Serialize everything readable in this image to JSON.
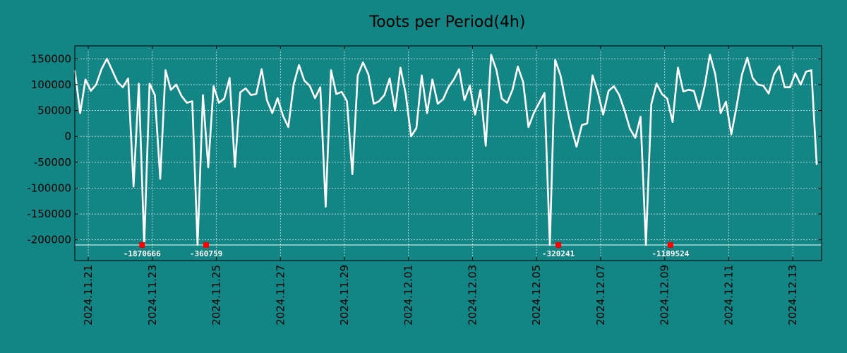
{
  "chart_data": {
    "type": "line",
    "title": "Toots per Period(4h)",
    "xlabel": "",
    "ylabel": "",
    "ylim": [
      -240000,
      175000
    ],
    "xlim": [
      0.58,
      23.9
    ],
    "yticks": [
      150000,
      100000,
      50000,
      0,
      -50000,
      -100000,
      -150000,
      -200000
    ],
    "ytick_labels": [
      "150000",
      "100000",
      "50000",
      "0",
      "-50000",
      "-100000",
      "-150000",
      "-200000"
    ],
    "xticks": [
      {
        "day": 1,
        "label": "2024.11.21"
      },
      {
        "day": 3,
        "label": "2024.11.23"
      },
      {
        "day": 5,
        "label": "2024.11.25"
      },
      {
        "day": 7,
        "label": "2024.11.27"
      },
      {
        "day": 9,
        "label": "2024.11.29"
      },
      {
        "day": 11,
        "label": "2024.12.01"
      },
      {
        "day": 13,
        "label": "2024.12.03"
      },
      {
        "day": 15,
        "label": "2024.12.05"
      },
      {
        "day": 17,
        "label": "2024.12.07"
      },
      {
        "day": 19,
        "label": "2024.12.09"
      },
      {
        "day": 21,
        "label": "2024.12.11"
      },
      {
        "day": 23,
        "label": "2024.12.13"
      }
    ],
    "reference_line": -210000,
    "colors": {
      "background": "#138585",
      "line": "#ffffff",
      "marker": "#ff0000",
      "grid": "#c9dede",
      "text": "#000000"
    },
    "series": [
      {
        "name": "toots",
        "x_start": 0.58,
        "x_step": 0.16667,
        "values": [
          128000,
          45000,
          110000,
          88000,
          100000,
          130000,
          150000,
          128000,
          105000,
          95000,
          112000,
          -97000,
          102000,
          -210000,
          102000,
          80000,
          -82000,
          128000,
          90000,
          100000,
          78000,
          65000,
          68000,
          -210000,
          80000,
          -60000,
          97000,
          65000,
          73000,
          113000,
          -59000,
          85000,
          93000,
          80000,
          82000,
          130000,
          70000,
          45000,
          74000,
          40000,
          18000,
          100000,
          138000,
          108000,
          98000,
          74000,
          95000,
          -136000,
          128000,
          82000,
          86000,
          68000,
          -73000,
          118000,
          143000,
          120000,
          63000,
          68000,
          80000,
          112000,
          50000,
          133000,
          82000,
          0,
          16000,
          118000,
          45000,
          110000,
          63000,
          72000,
          95000,
          110000,
          130000,
          70000,
          98000,
          42000,
          90000,
          -18000,
          158000,
          128000,
          73000,
          65000,
          90000,
          135000,
          105000,
          18000,
          45000,
          65000,
          84000,
          -210000,
          148000,
          118000,
          65000,
          18000,
          -20000,
          22000,
          25000,
          118000,
          85000,
          42000,
          88000,
          97000,
          80000,
          50000,
          15000,
          -3000,
          38000,
          -210000,
          62000,
          102000,
          82000,
          73000,
          28000,
          133000,
          87000,
          90000,
          88000,
          52000,
          97000,
          158000,
          120000,
          45000,
          67000,
          4000,
          58000,
          120000,
          152000,
          113000,
          100000,
          98000,
          83000,
          120000,
          136000,
          95000,
          95000,
          122000,
          100000,
          125000,
          128000,
          -55000
        ]
      }
    ],
    "annotations": [
      {
        "x": 2.68,
        "y": -210000,
        "label": "-1870666"
      },
      {
        "x": 4.68,
        "y": -210000,
        "label": "-360759"
      },
      {
        "x": 15.68,
        "y": -210000,
        "label": "-320241"
      },
      {
        "x": 19.18,
        "y": -210000,
        "label": "-1189524"
      }
    ]
  }
}
